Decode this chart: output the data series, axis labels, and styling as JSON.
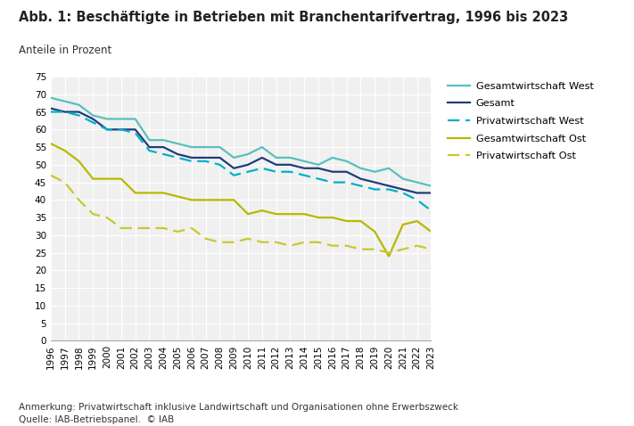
{
  "title": "Abb. 1: Beschäftigte in Betrieben mit Branchentarifvertrag, 1996 bis 2023",
  "subtitle": "Anteile in Prozent",
  "footnote1": "Anmerkung: Privatwirtschaft inklusive Landwirtschaft und Organisationen ohne Erwerbszweck",
  "footnote2": "Quelle: IAB-Betriebspanel.  © IAB",
  "years": [
    1996,
    1997,
    1998,
    1999,
    2000,
    2001,
    2002,
    2003,
    2004,
    2005,
    2006,
    2007,
    2008,
    2009,
    2010,
    2011,
    2012,
    2013,
    2014,
    2015,
    2016,
    2017,
    2018,
    2019,
    2020,
    2021,
    2022,
    2023
  ],
  "gesamtwirtschaft_west": [
    69,
    68,
    67,
    64,
    63,
    63,
    63,
    57,
    57,
    56,
    55,
    55,
    55,
    52,
    53,
    55,
    52,
    52,
    51,
    50,
    52,
    51,
    49,
    48,
    49,
    46,
    45,
    44
  ],
  "gesamt": [
    66,
    65,
    65,
    63,
    60,
    60,
    60,
    55,
    55,
    53,
    52,
    52,
    52,
    49,
    50,
    52,
    50,
    50,
    49,
    49,
    48,
    48,
    46,
    45,
    44,
    43,
    42,
    42
  ],
  "privatwirtschaft_west": [
    65,
    65,
    64,
    62,
    60,
    60,
    59,
    54,
    53,
    52,
    51,
    51,
    50,
    47,
    48,
    49,
    48,
    48,
    47,
    46,
    45,
    45,
    44,
    43,
    43,
    42,
    40,
    37
  ],
  "gesamtwirtschaft_ost": [
    56,
    54,
    51,
    46,
    46,
    46,
    42,
    42,
    42,
    41,
    40,
    40,
    40,
    40,
    36,
    37,
    36,
    36,
    36,
    35,
    35,
    34,
    34,
    31,
    24,
    33,
    34,
    31
  ],
  "privatwirtschaft_ost": [
    47,
    45,
    40,
    36,
    35,
    32,
    32,
    32,
    32,
    31,
    32,
    29,
    28,
    28,
    29,
    28,
    28,
    27,
    28,
    28,
    27,
    27,
    26,
    26,
    25,
    26,
    27,
    26
  ],
  "colors": {
    "gesamtwirtschaft_west": "#5abfbf",
    "gesamt": "#1f3d7a",
    "privatwirtschaft_west": "#00b0c8",
    "gesamtwirtschaft_ost": "#b8b800",
    "privatwirtschaft_ost": "#c8c830"
  },
  "ylim": [
    0,
    75
  ],
  "yticks": [
    0,
    5,
    10,
    15,
    20,
    25,
    30,
    35,
    40,
    45,
    50,
    55,
    60,
    65,
    70,
    75
  ],
  "bg_color": "#ffffff",
  "plot_bg_color": "#f0f0f0"
}
